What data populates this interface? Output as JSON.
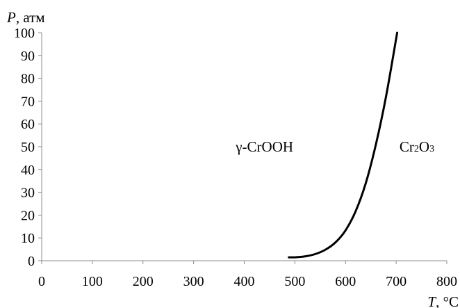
{
  "chart_data": {
    "type": "line",
    "title": "",
    "ylabel": {
      "var": "P",
      "unit": ", атм"
    },
    "xlabel": {
      "var": "T",
      "unit": ", °C"
    },
    "xlim": [
      0,
      800
    ],
    "ylim": [
      0,
      100
    ],
    "x_ticks": [
      "0",
      "100",
      "200",
      "300",
      "400",
      "500",
      "600",
      "700",
      "800"
    ],
    "y_ticks": [
      "0",
      "10",
      "20",
      "30",
      "40",
      "50",
      "60",
      "70",
      "80",
      "90",
      "100"
    ],
    "grid": false,
    "legend": "none",
    "series": [
      {
        "color": "#000000",
        "points": [
          [
            488,
            1.5
          ],
          [
            500,
            1.5
          ],
          [
            520,
            1.9
          ],
          [
            540,
            2.9
          ],
          [
            560,
            4.8
          ],
          [
            580,
            8.0
          ],
          [
            600,
            13.3
          ],
          [
            620,
            21.7
          ],
          [
            640,
            34.0
          ],
          [
            660,
            51.0
          ],
          [
            680,
            72.0
          ],
          [
            702,
            100.0
          ]
        ]
      }
    ],
    "annotations": [
      {
        "id": "left-phase",
        "text": "γ-CrOOH",
        "x": 440,
        "y": 50
      },
      {
        "id": "right-phase",
        "parts": [
          {
            "text": "Cr",
            "sub": false
          },
          {
            "text": "2",
            "sub": true
          },
          {
            "text": "O",
            "sub": false
          },
          {
            "text": "3",
            "sub": true
          }
        ],
        "x": 741,
        "y": 50
      }
    ]
  }
}
